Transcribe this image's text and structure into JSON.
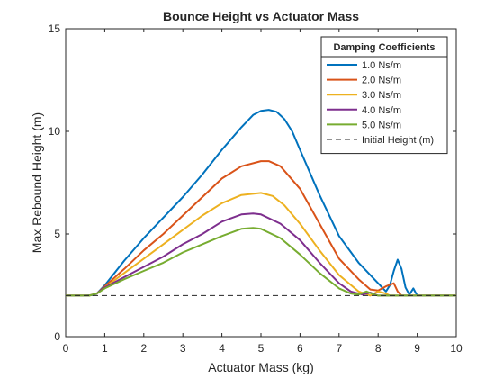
{
  "chart_data": {
    "type": "line",
    "title": "Bounce Height vs Actuator Mass",
    "xlabel": "Actuator Mass (kg)",
    "ylabel": "Max Rebound Height (m)",
    "xlim": [
      0,
      10
    ],
    "ylim": [
      0,
      15
    ],
    "x_ticks": [
      0,
      1,
      2,
      3,
      4,
      5,
      6,
      7,
      8,
      9,
      10
    ],
    "y_ticks": [
      0,
      5,
      10,
      15
    ],
    "grid": false,
    "legend": {
      "title": "Damping Coefficients",
      "placement": "top-right"
    },
    "series": [
      {
        "name": "1.0 Ns/m",
        "color": "#0072BD",
        "points": [
          [
            0,
            2
          ],
          [
            0.5,
            2
          ],
          [
            0.7,
            2.02
          ],
          [
            0.8,
            2.1
          ],
          [
            1,
            2.5
          ],
          [
            1.5,
            3.7
          ],
          [
            2,
            4.8
          ],
          [
            2.5,
            5.8
          ],
          [
            3,
            6.8
          ],
          [
            3.5,
            7.9
          ],
          [
            4,
            9.1
          ],
          [
            4.5,
            10.2
          ],
          [
            4.8,
            10.8
          ],
          [
            5,
            11
          ],
          [
            5.2,
            11.05
          ],
          [
            5.4,
            10.95
          ],
          [
            5.6,
            10.6
          ],
          [
            5.8,
            10
          ],
          [
            6,
            9.1
          ],
          [
            6.5,
            6.9
          ],
          [
            7,
            4.9
          ],
          [
            7.5,
            3.6
          ],
          [
            8,
            2.6
          ],
          [
            8.2,
            2.2
          ],
          [
            8.3,
            2.5
          ],
          [
            8.4,
            3.2
          ],
          [
            8.5,
            3.75
          ],
          [
            8.6,
            3.3
          ],
          [
            8.7,
            2.4
          ],
          [
            8.8,
            2.05
          ],
          [
            8.9,
            2.35
          ],
          [
            9,
            2
          ],
          [
            9.5,
            2
          ],
          [
            10,
            2
          ]
        ]
      },
      {
        "name": "2.0 Ns/m",
        "color": "#D95319",
        "points": [
          [
            0,
            2
          ],
          [
            0.6,
            2
          ],
          [
            0.8,
            2.1
          ],
          [
            1,
            2.45
          ],
          [
            1.5,
            3.3
          ],
          [
            2,
            4.2
          ],
          [
            2.5,
            5
          ],
          [
            3,
            5.9
          ],
          [
            3.5,
            6.8
          ],
          [
            4,
            7.7
          ],
          [
            4.5,
            8.3
          ],
          [
            5,
            8.55
          ],
          [
            5.2,
            8.55
          ],
          [
            5.5,
            8.3
          ],
          [
            6,
            7.2
          ],
          [
            6.5,
            5.5
          ],
          [
            7,
            3.8
          ],
          [
            7.5,
            2.8
          ],
          [
            7.8,
            2.3
          ],
          [
            8,
            2.25
          ],
          [
            8.2,
            2.45
          ],
          [
            8.4,
            2.6
          ],
          [
            8.5,
            2.2
          ],
          [
            8.6,
            2
          ],
          [
            9,
            2
          ],
          [
            10,
            2
          ]
        ]
      },
      {
        "name": "3.0 Ns/m",
        "color": "#EDB120",
        "points": [
          [
            0,
            2
          ],
          [
            0.6,
            2
          ],
          [
            0.8,
            2.1
          ],
          [
            1,
            2.4
          ],
          [
            1.5,
            3.1
          ],
          [
            2,
            3.8
          ],
          [
            2.5,
            4.5
          ],
          [
            3,
            5.2
          ],
          [
            3.5,
            5.9
          ],
          [
            4,
            6.5
          ],
          [
            4.5,
            6.9
          ],
          [
            5,
            7
          ],
          [
            5.3,
            6.85
          ],
          [
            5.6,
            6.4
          ],
          [
            6,
            5.5
          ],
          [
            6.5,
            4.2
          ],
          [
            7,
            3
          ],
          [
            7.5,
            2.2
          ],
          [
            7.8,
            2
          ],
          [
            8,
            2.2
          ],
          [
            8.2,
            2.1
          ],
          [
            8.3,
            2
          ],
          [
            9,
            2
          ],
          [
            10,
            2
          ]
        ]
      },
      {
        "name": "4.0 Ns/m",
        "color": "#7E2F8E",
        "points": [
          [
            0,
            2
          ],
          [
            0.6,
            2
          ],
          [
            0.8,
            2.1
          ],
          [
            1,
            2.4
          ],
          [
            1.5,
            2.9
          ],
          [
            2,
            3.4
          ],
          [
            2.5,
            3.9
          ],
          [
            3,
            4.5
          ],
          [
            3.5,
            5
          ],
          [
            4,
            5.6
          ],
          [
            4.5,
            5.95
          ],
          [
            4.8,
            6
          ],
          [
            5,
            5.95
          ],
          [
            5.5,
            5.5
          ],
          [
            6,
            4.7
          ],
          [
            6.5,
            3.6
          ],
          [
            7,
            2.6
          ],
          [
            7.3,
            2.2
          ],
          [
            7.6,
            2.05
          ],
          [
            7.8,
            2.15
          ],
          [
            8,
            2
          ],
          [
            9,
            2
          ],
          [
            10,
            2
          ]
        ]
      },
      {
        "name": "5.0 Ns/m",
        "color": "#77AC30",
        "points": [
          [
            0,
            2
          ],
          [
            0.6,
            2
          ],
          [
            0.8,
            2.1
          ],
          [
            1,
            2.35
          ],
          [
            1.5,
            2.8
          ],
          [
            2,
            3.2
          ],
          [
            2.5,
            3.6
          ],
          [
            3,
            4.1
          ],
          [
            3.5,
            4.5
          ],
          [
            4,
            4.9
          ],
          [
            4.5,
            5.25
          ],
          [
            4.8,
            5.3
          ],
          [
            5,
            5.25
          ],
          [
            5.5,
            4.8
          ],
          [
            6,
            4
          ],
          [
            6.5,
            3.1
          ],
          [
            7,
            2.35
          ],
          [
            7.3,
            2.1
          ],
          [
            7.5,
            2.05
          ],
          [
            7.7,
            2.2
          ],
          [
            7.9,
            2.05
          ],
          [
            8,
            2
          ],
          [
            9,
            2
          ],
          [
            10,
            2
          ]
        ]
      },
      {
        "name": "Initial Height (m)",
        "color": "#262626",
        "dashed": true,
        "points": [
          [
            0,
            2
          ],
          [
            10,
            2
          ]
        ]
      }
    ]
  }
}
